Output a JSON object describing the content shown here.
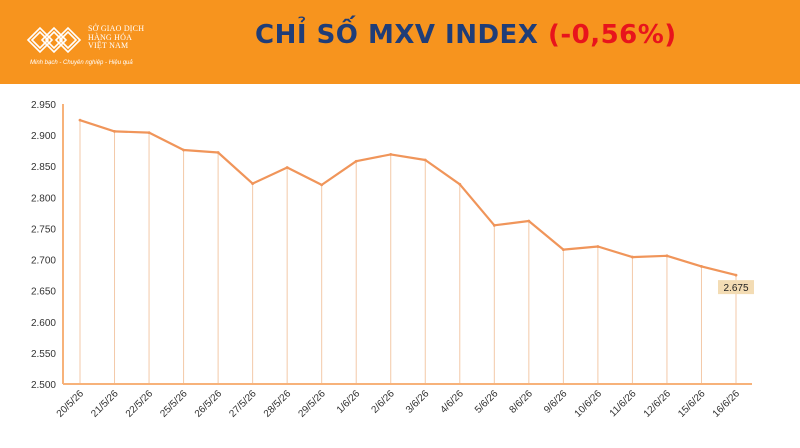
{
  "brand": {
    "name_lines": [
      "SỞ GIAO DỊCH",
      "HÀNG HÓA",
      "VIỆT NAM"
    ],
    "slogan": "Minh bạch - Chuyên nghiệp - Hiệu quả",
    "colors": {
      "header": "#f7941e",
      "title": "#1f3d78",
      "change": "#e8141c",
      "line": "#f0955a"
    }
  },
  "header": {
    "title": "CHỈ SỐ MXV INDEX",
    "change": "(-0,56%)"
  },
  "chart_data": {
    "type": "line",
    "categories": [
      "20/5/26",
      "21/5/26",
      "22/5/26",
      "25/5/26",
      "26/5/26",
      "27/5/26",
      "28/5/26",
      "29/5/26",
      "1/6/26",
      "2/6/26",
      "3/6/26",
      "4/6/26",
      "5/6/26",
      "8/6/26",
      "9/6/26",
      "10/6/26",
      "11/6/26",
      "12/6/26",
      "15/6/26",
      "16/6/26"
    ],
    "values": [
      2924,
      2906,
      2904,
      2876,
      2872,
      2822,
      2848,
      2820,
      2858,
      2869,
      2860,
      2821,
      2755,
      2762,
      2716,
      2721,
      2704,
      2706,
      2689,
      2675
    ],
    "ylim": [
      2500,
      2950
    ],
    "yticks": [
      "2.500",
      "2.550",
      "2.600",
      "2.650",
      "2.700",
      "2.750",
      "2.800",
      "2.850",
      "2.900",
      "2.950"
    ],
    "grid": "vertical",
    "last_label": "2.675"
  }
}
